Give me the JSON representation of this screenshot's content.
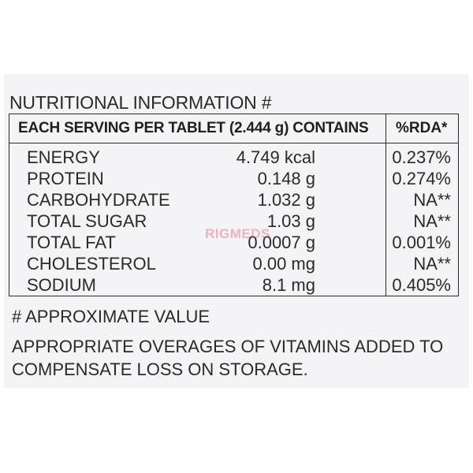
{
  "heading": "NUTRITIONAL INFORMATION #",
  "table": {
    "header_main": "EACH SERVING PER TABLET (2.444 g) CONTAINS",
    "header_rda": "%RDA*",
    "rows": [
      {
        "name": "ENERGY",
        "amount": "4.749 kcal",
        "rda": "0.237%"
      },
      {
        "name": "PROTEIN",
        "amount": "0.148 g",
        "rda": "0.274%"
      },
      {
        "name": "CARBOHYDRATE",
        "amount": "1.032 g",
        "rda": "NA**"
      },
      {
        "name": "TOTAL SUGAR",
        "amount": "1.03 g",
        "rda": "NA**"
      },
      {
        "name": "TOTAL FAT",
        "amount": "0.0007 g",
        "rda": "0.001%"
      },
      {
        "name": "CHOLESTEROL",
        "amount": "0.00 mg",
        "rda": "NA**"
      },
      {
        "name": "SODIUM",
        "amount": "8.1 mg",
        "rda": "0.405%"
      }
    ]
  },
  "watermark": "RIGMEDS",
  "footnote": "# APPROXIMATE VALUE",
  "note": "APPROPRIATE OVERAGES OF VITAMINS ADDED TO COMPENSATE LOSS ON STORAGE."
}
